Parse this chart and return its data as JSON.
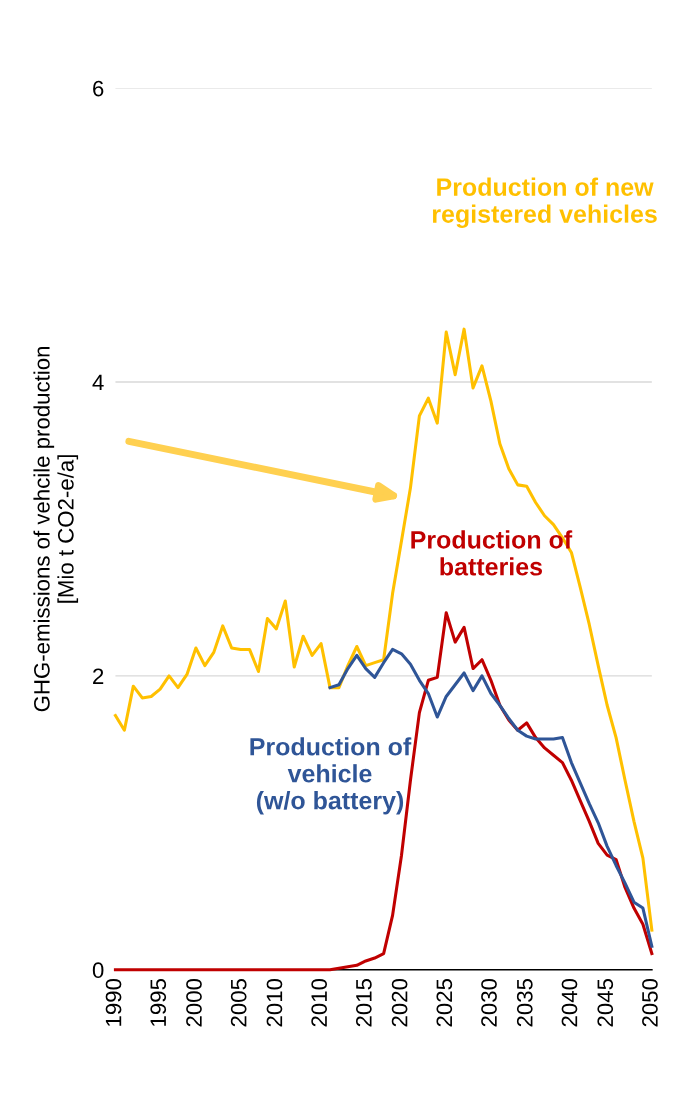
{
  "chart_data": {
    "type": "line",
    "ylabel": "GHG-emissions of vehcile production\n[Mio t CO2-e/a]",
    "categories": [
      "1990",
      null,
      null,
      null,
      null,
      "1995",
      null,
      null,
      null,
      "2000",
      null,
      null,
      null,
      null,
      "2005",
      null,
      null,
      null,
      "2010",
      null,
      null,
      null,
      null,
      "2010",
      null,
      null,
      null,
      null,
      "2015",
      null,
      null,
      null,
      "2020",
      null,
      null,
      null,
      null,
      "2025",
      null,
      null,
      null,
      null,
      "2030",
      null,
      null,
      null,
      "2035",
      null,
      null,
      null,
      null,
      "2040",
      null,
      null,
      null,
      "2045",
      null,
      null,
      null,
      null,
      "2050"
    ],
    "series": [
      {
        "name": "Production of new\nregistered vehicles",
        "color": "#ffc000",
        "values": [
          1.73,
          1.63,
          1.93,
          1.85,
          1.86,
          1.91,
          2.0,
          1.92,
          2.01,
          2.19,
          2.07,
          2.16,
          2.34,
          2.19,
          2.18,
          2.18,
          2.03,
          2.39,
          2.32,
          2.51,
          2.06,
          2.27,
          2.14,
          2.22,
          1.92,
          1.92,
          2.07,
          2.2,
          2.07,
          2.09,
          2.11,
          2.56,
          2.92,
          3.28,
          3.77,
          3.89,
          3.72,
          4.34,
          4.05,
          4.36,
          3.96,
          4.11,
          3.87,
          3.58,
          3.41,
          3.3,
          3.29,
          3.18,
          3.09,
          3.03,
          2.94,
          2.84,
          2.6,
          2.35,
          2.07,
          1.8,
          1.58,
          1.29,
          1.01,
          0.76,
          0.27
        ]
      },
      {
        "name": "Production of\nbatteries",
        "color": "#c00000",
        "values": [
          0,
          0,
          0,
          0,
          0,
          0,
          0,
          0,
          0,
          0,
          0,
          0,
          0,
          0,
          0,
          0,
          0,
          0,
          0,
          0,
          0,
          0,
          0,
          0,
          0,
          0.01,
          0.02,
          0.03,
          0.06,
          0.08,
          0.11,
          0.37,
          0.78,
          1.29,
          1.75,
          1.97,
          1.99,
          2.43,
          2.23,
          2.33,
          2.05,
          2.11,
          1.97,
          1.8,
          1.7,
          1.63,
          1.68,
          1.58,
          1.51,
          1.46,
          1.41,
          1.29,
          1.15,
          1.01,
          0.86,
          0.78,
          0.75,
          0.56,
          0.42,
          0.31,
          0.11
        ]
      },
      {
        "name": "Production of\nvehicle\n(w/o battery)",
        "color": "#2f5597",
        "values": [
          null,
          null,
          null,
          null,
          null,
          null,
          null,
          null,
          null,
          null,
          null,
          null,
          null,
          null,
          null,
          null,
          null,
          null,
          null,
          null,
          null,
          null,
          null,
          null,
          1.92,
          1.94,
          2.05,
          2.14,
          2.05,
          1.99,
          2.09,
          2.18,
          2.15,
          2.08,
          1.97,
          1.88,
          1.72,
          1.86,
          1.94,
          2.02,
          1.9,
          2.0,
          1.88,
          1.8,
          1.71,
          1.63,
          1.59,
          1.57,
          1.57,
          1.57,
          1.58,
          1.41,
          1.27,
          1.13,
          1.0,
          0.84,
          0.71,
          0.59,
          0.46,
          0.42,
          0.16
        ]
      }
    ],
    "ylim": [
      0,
      6
    ],
    "yticks": [
      0,
      2,
      4,
      6
    ],
    "grid": "y",
    "marker": "none",
    "line_style": "solid"
  }
}
